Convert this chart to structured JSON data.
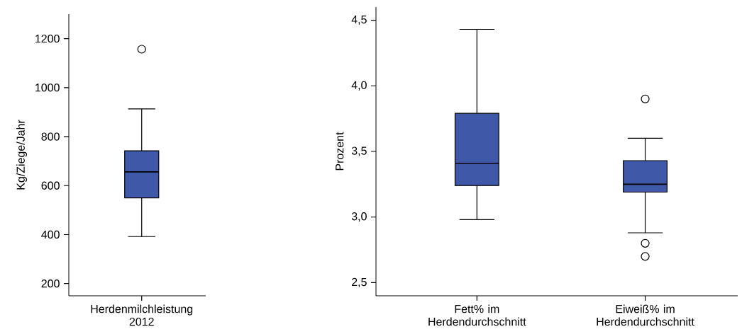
{
  "chart_data": [
    {
      "type": "box",
      "ylabel": "Kg/Ziege/Jahr",
      "categories": [
        "Herdenmilchleistung 2012"
      ],
      "color": "#3f58a8",
      "ylim": [
        150,
        1300
      ],
      "yticks": [
        200,
        400,
        600,
        800,
        1000,
        1200
      ],
      "boxes": [
        {
          "low": 392,
          "q1": 550,
          "median": 656,
          "q3": 742,
          "high": 913,
          "outliers": [
            1157
          ]
        }
      ]
    },
    {
      "type": "box",
      "ylabel": "Prozent",
      "categories": [
        "Fett% im Herdendurchschnitt",
        "Eiweiß% im Herdendurchschnitt"
      ],
      "color": "#3f58a8",
      "ylim": [
        2.4,
        4.6
      ],
      "yticks": [
        {
          "value": 2.5,
          "label": "2,5"
        },
        {
          "value": 3.0,
          "label": "3,0"
        },
        {
          "value": 3.5,
          "label": "3,5"
        },
        {
          "value": 4.0,
          "label": "4,0"
        },
        {
          "value": 4.5,
          "label": "4,5"
        }
      ],
      "boxes": [
        {
          "low": 2.98,
          "q1": 3.24,
          "median": 3.41,
          "q3": 3.79,
          "high": 4.43
        },
        {
          "low": 2.88,
          "q1": 3.19,
          "median": 3.25,
          "q3": 3.43,
          "high": 3.6,
          "outliers": [
            3.9,
            2.8,
            2.7
          ]
        }
      ]
    }
  ]
}
